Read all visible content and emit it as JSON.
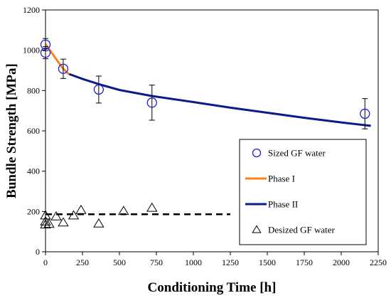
{
  "chart_data": {
    "type": "scatter",
    "xlabel": "Conditioning Time [h]",
    "ylabel": "Bundle Strength [MPa]",
    "xlim": [
      0,
      2250
    ],
    "ylim": [
      0,
      1200
    ],
    "xticks": [
      0,
      250,
      500,
      750,
      1000,
      1250,
      1500,
      1750,
      2000,
      2250
    ],
    "yticks": [
      0,
      200,
      400,
      600,
      800,
      1000,
      1200
    ],
    "grid": false,
    "legend_position": "bottom-right",
    "series": [
      {
        "name": "Sized GF water",
        "kind": "scatter",
        "marker": "circle",
        "color": "#1f1fd6",
        "x": [
          0,
          0,
          120,
          360,
          720,
          2160
        ],
        "y": [
          1028,
          988,
          908,
          805,
          740,
          685
        ],
        "error": [
          30,
          30,
          48,
          67,
          87,
          75
        ]
      },
      {
        "name": "Phase I",
        "kind": "line",
        "color": "#ff7f1f",
        "x": [
          0,
          40,
          80,
          120,
          160
        ],
        "y": [
          1030,
          990,
          948,
          908,
          880
        ]
      },
      {
        "name": "Phase II",
        "kind": "line",
        "color": "#0c1a8c",
        "x": [
          160,
          250,
          360,
          500,
          720,
          1000,
          1250,
          1500,
          1750,
          2000,
          2200
        ],
        "y": [
          882,
          858,
          832,
          803,
          773,
          743,
          715,
          690,
          665,
          642,
          625
        ]
      },
      {
        "name": "Desized GF water",
        "kind": "scatter",
        "marker": "triangle",
        "color": "#000000",
        "x": [
          0,
          0,
          0,
          24,
          72,
          120,
          190,
          240,
          360,
          528,
          720
        ],
        "y": [
          180,
          150,
          135,
          138,
          175,
          145,
          180,
          207,
          140,
          202,
          218
        ]
      },
      {
        "name": "",
        "kind": "dashed-line",
        "color": "#000000",
        "x": [
          0,
          1250
        ],
        "y": [
          186,
          186
        ]
      }
    ]
  }
}
